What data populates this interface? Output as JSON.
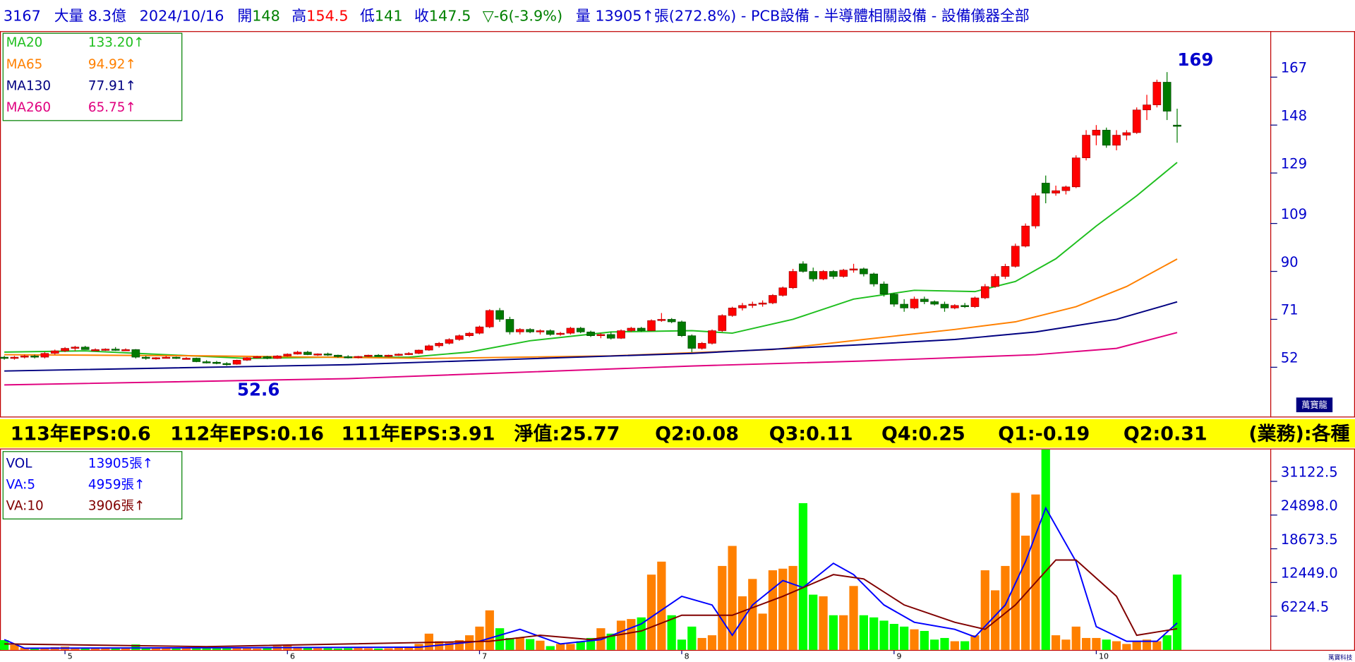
{
  "header": {
    "code": "3167",
    "big": "大量 8.3億",
    "date": "2024/10/16",
    "open_label": "開",
    "open": "148",
    "high_label": "高",
    "high": "154.5",
    "low_label": "低",
    "low": "141",
    "close_label": "收",
    "close": "147.5",
    "change": "▽-6(-3.9%)",
    "rest": "量 13905↑張(272.8%) - PCB設備 - 半導體相關設備 - 設備儀器全部"
  },
  "fundamentals": [
    "113年EPS:0.6",
    "112年EPS:0.16",
    "111年EPS:3.91",
    "淨值:25.77",
    "Q2:0.08",
    "Q3:0.11",
    "Q4:0.25",
    "Q1:-0.19",
    "Q2:0.31",
    "(業務):各種"
  ],
  "logo": "萬寶龍",
  "footer": "萬寶科技",
  "chart_data": [
    {
      "type": "candlestick",
      "up_color": "#ff0000",
      "down_color": "#007a00",
      "ylim": [
        32.8,
        184.9
      ],
      "yticks": [
        52,
        71,
        90,
        109,
        129,
        148,
        167
      ],
      "grid": false,
      "legend": "top-left",
      "max_label": 169,
      "min_label": 52.6,
      "open": [
        56,
        55.5,
        56,
        56.5,
        56,
        57.5,
        58.5,
        59.5,
        60,
        59,
        59,
        59.2,
        58.8,
        59,
        56,
        55.5,
        55.8,
        56,
        55.5,
        55.6,
        54.2,
        54,
        53.5,
        53.2,
        54.8,
        55.8,
        56.2,
        55.5,
        56.5,
        57.2,
        58,
        57,
        57.3,
        56.8,
        56.2,
        55.8,
        56.3,
        56.8,
        56.5,
        56.8,
        57.2,
        57.5,
        58.8,
        60.5,
        61.5,
        63,
        64.5,
        65.5,
        68,
        74.5,
        71,
        66,
        67,
        66,
        66.5,
        65,
        65.5,
        67.5,
        66,
        64.5,
        65,
        63.5,
        66.5,
        67.5,
        66.5,
        70.5,
        71,
        70,
        64.5,
        59.5,
        61.5,
        66.5,
        72.5,
        75.5,
        76.5,
        77,
        77.5,
        80.5,
        83.5,
        93,
        90,
        87,
        90,
        88,
        90.5,
        91,
        89,
        85,
        81,
        77,
        75.5,
        79,
        78,
        77,
        75.5,
        76.5,
        76,
        79.5,
        84,
        88,
        92,
        100,
        108,
        125,
        121,
        122,
        123.5,
        135,
        144,
        146,
        140,
        144,
        145,
        154,
        156,
        165,
        148
      ],
      "high": [
        56.5,
        56.5,
        57,
        57,
        58,
        59,
        60,
        60.5,
        60.5,
        59.5,
        59.5,
        60,
        59.5,
        59.2,
        56.5,
        56,
        56.5,
        56.2,
        56,
        55.8,
        54.8,
        54.5,
        54,
        55,
        56,
        56.5,
        56.5,
        56.8,
        57.5,
        58.5,
        58.5,
        57.5,
        57.8,
        57,
        56.8,
        56.5,
        57,
        57.2,
        57,
        57.5,
        58,
        59,
        61,
        62,
        63.5,
        65,
        66,
        68.5,
        75,
        75.5,
        72,
        67.5,
        67.5,
        67,
        67,
        66,
        68,
        68,
        66.5,
        65.5,
        66,
        67,
        68,
        68,
        71,
        73.5,
        71.5,
        70.5,
        65,
        62,
        67,
        73,
        76,
        77.5,
        78,
        78.5,
        81,
        84,
        91,
        94,
        91.5,
        90.5,
        90.5,
        91,
        93,
        91.5,
        89.5,
        86,
        81.5,
        79,
        80,
        80,
        78.5,
        78,
        77,
        77.5,
        80,
        85,
        89,
        93,
        101,
        109,
        121,
        128,
        124,
        124,
        136,
        146,
        148,
        147,
        146,
        146,
        155,
        160,
        166,
        169,
        154.5
      ],
      "low": [
        55,
        55,
        55.5,
        55.5,
        55.5,
        57,
        58,
        58.5,
        59,
        58.5,
        58.5,
        58.5,
        58.5,
        55.5,
        55,
        55,
        55.5,
        55.3,
        55.2,
        54,
        53.5,
        53.2,
        52.6,
        53,
        54.5,
        55.5,
        55.2,
        55.3,
        56.2,
        57,
        56.8,
        56.5,
        56.5,
        55.8,
        55.5,
        55.5,
        56,
        56.2,
        56,
        56.5,
        56.8,
        57.2,
        58.5,
        59.8,
        61,
        62.5,
        64,
        65,
        67.5,
        70,
        65,
        65,
        65.5,
        65,
        64.5,
        64.5,
        65,
        65.5,
        64,
        63.5,
        63,
        63.2,
        66,
        66,
        66.3,
        70,
        69.5,
        64,
        58,
        59,
        61,
        66,
        72,
        74.5,
        75.5,
        76,
        77,
        80,
        83,
        89.5,
        86,
        86.5,
        87,
        87.5,
        89.5,
        88,
        84,
        80,
        76,
        74,
        75,
        77,
        76.5,
        74,
        75,
        75.5,
        75.5,
        79,
        83.5,
        87,
        91.5,
        99.5,
        107,
        117,
        120,
        120.5,
        123,
        134,
        140,
        139,
        138,
        142,
        144.5,
        150,
        155,
        150,
        141
      ],
      "close": [
        55.5,
        56,
        56.5,
        56,
        57.5,
        58.5,
        59.5,
        60,
        59,
        59,
        59.2,
        58.8,
        59,
        56,
        55.5,
        55.8,
        56,
        55.5,
        55.6,
        54.2,
        54,
        53.5,
        53.2,
        54.8,
        55.8,
        56.2,
        55.5,
        56.5,
        57.2,
        58,
        57,
        57.3,
        56.8,
        56.2,
        55.8,
        56.3,
        56.8,
        56.5,
        56.8,
        57.2,
        57.5,
        58.8,
        60.5,
        61.5,
        63,
        64.5,
        65.5,
        68,
        74.5,
        71,
        66,
        67,
        66,
        66.5,
        65,
        65.5,
        67.5,
        66,
        64.5,
        65,
        63.5,
        66.5,
        67.5,
        66.5,
        70.5,
        71,
        70,
        64.5,
        59.5,
        61.5,
        66.5,
        72.5,
        75.5,
        76.5,
        77,
        77.5,
        80.5,
        83.5,
        90,
        90,
        87,
        90,
        88,
        90.5,
        91,
        89,
        85,
        81,
        77,
        75.5,
        79,
        78,
        77,
        75.5,
        76.5,
        76,
        79.5,
        84,
        88,
        92,
        100,
        108,
        120,
        121,
        122,
        123.5,
        135,
        144,
        146,
        140,
        144,
        145,
        154,
        156,
        165,
        153.5,
        147.5
      ],
      "series": [
        {
          "name": "MA20",
          "label": "133.20↑",
          "color": "#1fbf1f",
          "x": [
            0,
            8,
            16,
            24,
            32,
            40,
            46,
            52,
            60,
            68,
            72,
            78,
            84,
            90,
            96,
            100,
            104,
            108,
            112,
            116
          ],
          "values": [
            58,
            58.5,
            57,
            55.5,
            56,
            56,
            58,
            62.5,
            66,
            66.5,
            65.5,
            71,
            79,
            82.5,
            82,
            86,
            95,
            108,
            120,
            133.2
          ]
        },
        {
          "name": "MA65",
          "label": "94.92↑",
          "color": "#ff8000",
          "x": [
            0,
            20,
            42,
            60,
            76,
            85,
            94,
            100,
            106,
            111,
            116
          ],
          "values": [
            57,
            56.5,
            55.5,
            56.5,
            59,
            63,
            67,
            70,
            76,
            84,
            94.92
          ]
        },
        {
          "name": "MA130",
          "label": "77.91↑",
          "color": "#000080",
          "x": [
            0,
            34,
            68,
            85,
            94,
            102,
            110,
            116
          ],
          "values": [
            50.5,
            53,
            57.5,
            61,
            63,
            66,
            71,
            77.91
          ]
        },
        {
          "name": "MA260",
          "label": "65.75↑",
          "color": "#e0007f",
          "x": [
            0,
            34,
            68,
            85,
            102,
            110,
            116
          ],
          "values": [
            45,
            47.5,
            52.5,
            54.5,
            57,
            59.5,
            65.75
          ]
        }
      ]
    },
    {
      "type": "bar",
      "ylim": [
        0,
        37028
      ],
      "yticks": [
        6224.5,
        {
          "value": 12449,
          "label": "12449.0"
        },
        18673.5,
        {
          "value": 24898,
          "label": "24898.0"
        },
        31122.5
      ],
      "grid": false,
      "legend": "top-left",
      "categories": [
        null,
        null,
        null,
        null,
        null,
        null,
        "5",
        null,
        null,
        null,
        null,
        null,
        null,
        null,
        null,
        null,
        null,
        null,
        null,
        null,
        null,
        null,
        null,
        null,
        null,
        null,
        null,
        null,
        "6",
        null,
        null,
        null,
        null,
        null,
        null,
        null,
        null,
        null,
        null,
        null,
        null,
        null,
        null,
        null,
        null,
        null,
        null,
        "7",
        null,
        null,
        null,
        null,
        null,
        null,
        null,
        null,
        null,
        null,
        null,
        null,
        null,
        null,
        null,
        null,
        null,
        null,
        null,
        "8",
        null,
        null,
        null,
        null,
        null,
        null,
        null,
        null,
        null,
        null,
        null,
        null,
        null,
        null,
        null,
        null,
        null,
        null,
        null,
        null,
        "9",
        null,
        null,
        null,
        null,
        null,
        null,
        null,
        null,
        null,
        null,
        null,
        null,
        null,
        null,
        null,
        null,
        null,
        null,
        null,
        "10",
        null,
        null,
        null,
        null,
        null,
        null,
        null,
        null
      ],
      "series": [
        {
          "name": "VOL",
          "label": "13905張↑",
          "color": "#0000a0",
          "up_color": "#ff8000",
          "down_color": "#00ff00",
          "values": [
            1800,
            900,
            400,
            300,
            350,
            500,
            600,
            400,
            350,
            300,
            300,
            250,
            300,
            1000,
            400,
            300,
            300,
            250,
            300,
            350,
            400,
            300,
            450,
            350,
            300,
            250,
            300,
            700,
            900,
            600,
            400,
            300,
            300,
            250,
            300,
            350,
            300,
            250,
            300,
            400,
            600,
            1100,
            3000,
            1600,
            1500,
            1800,
            2700,
            4300,
            7300,
            4000,
            2200,
            2300,
            2000,
            1700,
            700,
            1100,
            1100,
            1600,
            2200,
            4000,
            3000,
            5400,
            5700,
            6000,
            13900,
            16300,
            6400,
            1900,
            4300,
            2200,
            2700,
            15500,
            19200,
            9900,
            13100,
            6700,
            14700,
            15000,
            15500,
            27100,
            10200,
            9900,
            6400,
            6400,
            11800,
            6400,
            6000,
            5400,
            4800,
            4300,
            3800,
            3500,
            1900,
            2200,
            1600,
            1600,
            2700,
            14700,
            11000,
            15500,
            29000,
            21100,
            28700,
            37000,
            2700,
            1900,
            4300,
            2200,
            2200,
            1900,
            1600,
            1100,
            1600,
            1900,
            1600,
            2700,
            13905
          ]
        },
        {
          "name": "VA:5",
          "label": "4959張↑",
          "color": "#0000ff",
          "x": [
            0,
            2,
            41,
            47,
            51,
            55,
            59,
            63,
            67,
            70,
            72,
            74,
            77,
            79,
            82,
            84,
            87,
            90,
            94,
            96,
            99,
            101,
            103,
            106,
            108,
            111,
            114,
            116
          ],
          "values": [
            1900,
            300,
            500,
            1600,
            3800,
            1100,
            1900,
            4800,
            9900,
            8300,
            2700,
            8300,
            12800,
            11500,
            16000,
            13900,
            8300,
            5100,
            3800,
            2400,
            8300,
            16300,
            26200,
            16300,
            4300,
            1600,
            1600,
            4959
          ]
        },
        {
          "name": "VA:10",
          "label": "3906張↑",
          "color": "#800000",
          "x": [
            0,
            20,
            48,
            53,
            58,
            63,
            67,
            72,
            77,
            82,
            85,
            89,
            94,
            97,
            100,
            104,
            106,
            110,
            112,
            116
          ],
          "values": [
            1100,
            600,
            1600,
            2700,
            1900,
            3500,
            6400,
            6400,
            9900,
            13900,
            13100,
            8300,
            5100,
            3800,
            8300,
            16600,
            16600,
            9900,
            2700,
            3906
          ]
        }
      ]
    }
  ]
}
